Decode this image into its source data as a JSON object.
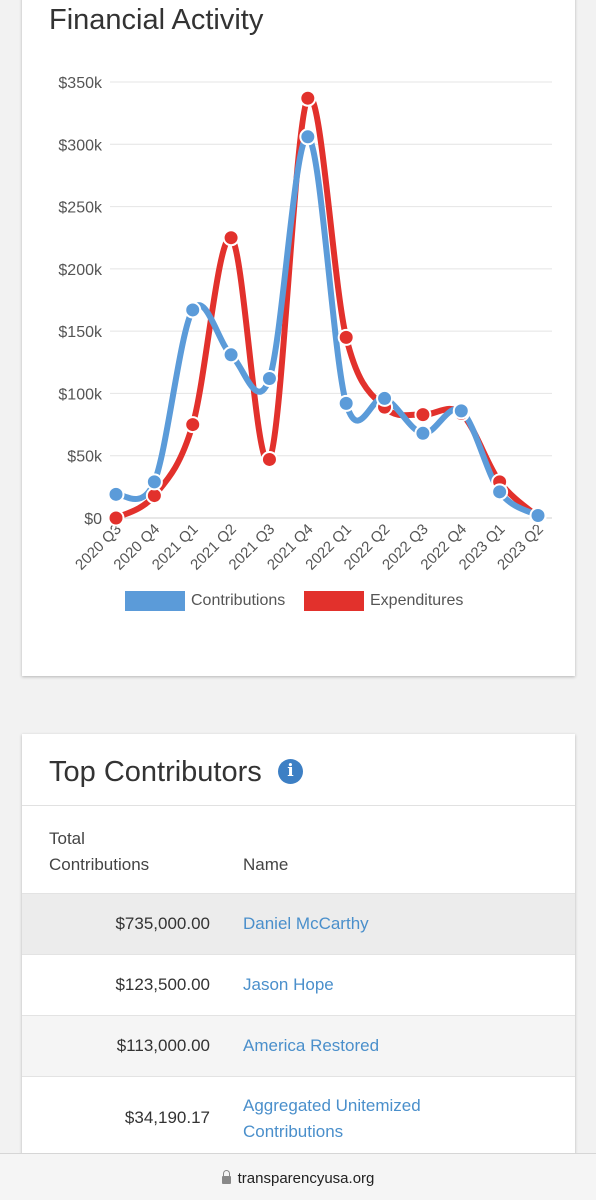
{
  "chart_card": {
    "title": "Financial Activity"
  },
  "chart_data": {
    "type": "line",
    "title": "Financial Activity",
    "x": [
      "2020 Q3",
      "2020 Q4",
      "2021 Q1",
      "2021 Q2",
      "2021 Q3",
      "2021 Q4",
      "2022 Q1",
      "2022 Q2",
      "2022 Q3",
      "2022 Q4",
      "2023 Q1",
      "2023 Q2"
    ],
    "series": [
      {
        "name": "Contributions",
        "color": "#5b9bd9",
        "values": [
          19000,
          29000,
          167000,
          131000,
          112000,
          306000,
          92000,
          96000,
          68000,
          86000,
          21000,
          2000
        ]
      },
      {
        "name": "Expenditures",
        "color": "#e2312c",
        "values": [
          0,
          18000,
          75000,
          225000,
          47000,
          337000,
          145000,
          89000,
          83000,
          84000,
          29000,
          1000
        ]
      }
    ],
    "yticks": [
      "$0",
      "$50k",
      "$100k",
      "$150k",
      "$200k",
      "$250k",
      "$300k",
      "$350k"
    ],
    "ylim": [
      0,
      350000
    ],
    "grid": true,
    "legend": "bottom"
  },
  "contributors": {
    "title": "Top Contributors",
    "info_icon": "info-icon",
    "headers": {
      "total_line1": "Total",
      "total_line2": "Contributions",
      "name": "Name"
    },
    "rows": [
      {
        "amount": "$735,000.00",
        "name": "Daniel McCarthy"
      },
      {
        "amount": "$123,500.00",
        "name": "Jason Hope"
      },
      {
        "amount": "$113,000.00",
        "name": "America Restored"
      },
      {
        "amount": "$34,190.17",
        "name": "Aggregated Unitemized Contributions"
      }
    ]
  },
  "browser": {
    "url": "transparencyusa.org",
    "lock_icon": "lock-icon"
  }
}
